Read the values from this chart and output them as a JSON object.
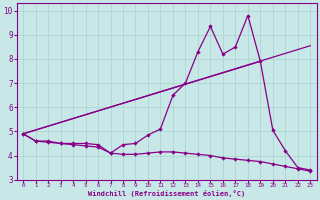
{
  "xlabel": "Windchill (Refroidissement éolien,°C)",
  "bg_color": "#c8e8e8",
  "line_color": "#880088",
  "grid_color": "#a8d0d0",
  "xlim": [
    -0.5,
    23.5
  ],
  "ylim": [
    3,
    10.3
  ],
  "yticks": [
    3,
    4,
    5,
    6,
    7,
    8,
    9,
    10
  ],
  "xticks": [
    0,
    1,
    2,
    3,
    4,
    5,
    6,
    7,
    8,
    9,
    10,
    11,
    12,
    13,
    14,
    15,
    16,
    17,
    18,
    19,
    20,
    21,
    22,
    23
  ],
  "curve1_x": [
    0,
    1,
    2,
    3,
    4,
    5,
    6,
    7,
    8,
    9,
    10,
    11,
    12,
    13,
    14,
    15,
    16,
    17,
    18,
    19,
    20,
    21,
    22,
    23
  ],
  "curve1_y": [
    4.9,
    4.6,
    4.6,
    4.5,
    4.5,
    4.5,
    4.45,
    4.1,
    4.45,
    4.5,
    4.85,
    5.1,
    6.5,
    7.0,
    8.3,
    9.35,
    8.2,
    8.5,
    9.8,
    7.9,
    5.05,
    4.2,
    3.5,
    3.4
  ],
  "curve2_x": [
    0,
    1,
    2,
    3,
    4,
    5,
    6,
    7,
    8,
    9,
    10,
    11,
    12,
    13,
    14,
    15,
    16,
    17,
    18,
    19,
    20,
    21,
    22,
    23
  ],
  "curve2_y": [
    4.9,
    4.6,
    4.55,
    4.5,
    4.45,
    4.4,
    4.35,
    4.1,
    4.05,
    4.05,
    4.1,
    4.15,
    4.15,
    4.1,
    4.05,
    4.0,
    3.9,
    3.85,
    3.8,
    3.75,
    3.65,
    3.55,
    3.45,
    3.35
  ],
  "line1_x": [
    0,
    23
  ],
  "line1_y": [
    4.9,
    8.55
  ],
  "line2_x": [
    0,
    19
  ],
  "line2_y": [
    4.9,
    7.9
  ]
}
